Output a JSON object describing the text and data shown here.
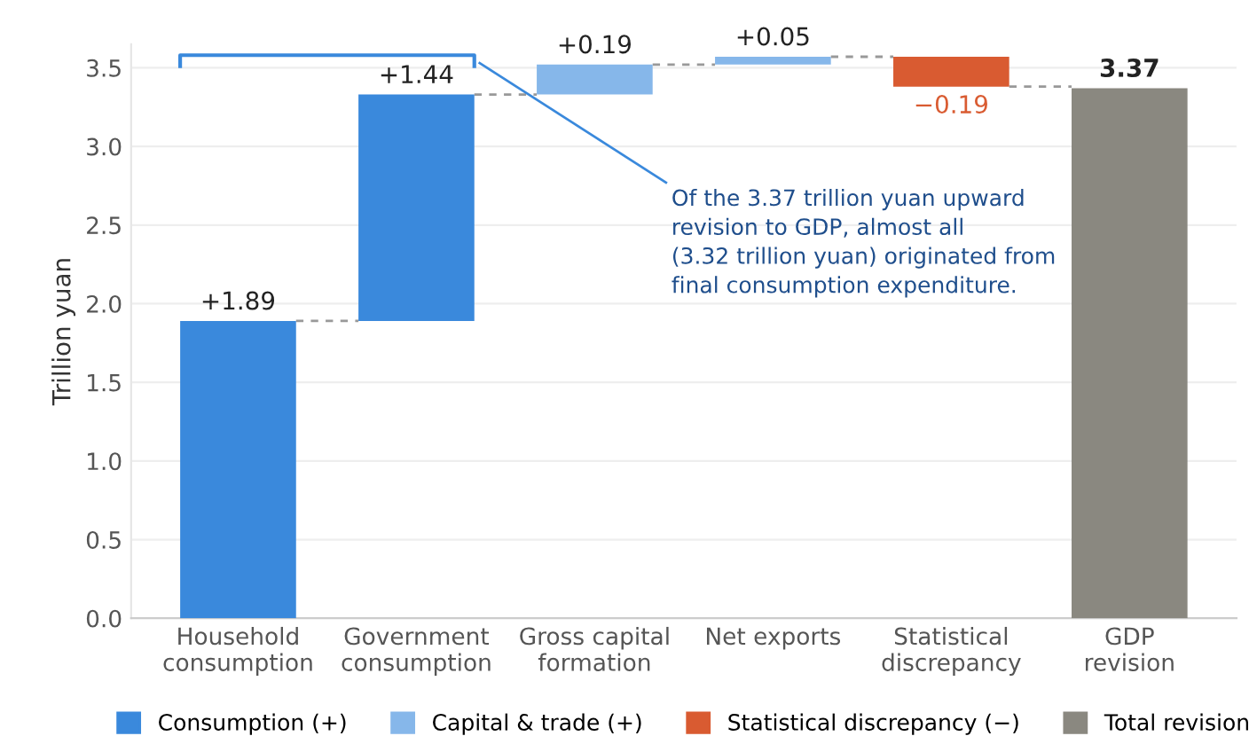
{
  "chart_data": {
    "type": "bar",
    "ylabel": "Trillion yuan",
    "categories": [
      "Household\nconsumption",
      "Government\nconsumption",
      "Gross capital\nformation",
      "Net exports",
      "Statistical\ndiscrepancy",
      "GDP\nrevision"
    ],
    "series": [
      {
        "name": "Consumption (+)",
        "color": "#3a89dc",
        "base": [
          0,
          1.89,
          null,
          null,
          null,
          null
        ],
        "values": [
          1.89,
          1.44,
          null,
          null,
          null,
          null
        ],
        "value_labels": [
          "+1.89",
          "+1.44",
          null,
          null,
          null,
          null
        ]
      },
      {
        "name": "Capital & trade (+)",
        "color": "#86b7ea",
        "base": [
          null,
          null,
          3.33,
          3.52,
          null,
          null
        ],
        "values": [
          null,
          null,
          0.19,
          0.05,
          null,
          null
        ],
        "value_labels": [
          null,
          null,
          "+0.19",
          "+0.05",
          null,
          null
        ]
      },
      {
        "name": "Statistical discrepancy (−)",
        "color": "#d95b31",
        "base": [
          null,
          null,
          null,
          null,
          3.57,
          null
        ],
        "values": [
          null,
          null,
          null,
          null,
          -0.19,
          null
        ],
        "value_labels": [
          null,
          null,
          null,
          null,
          "−0.19",
          null
        ]
      },
      {
        "name": "Total revision",
        "color": "#8a8880",
        "base": [
          null,
          null,
          null,
          null,
          null,
          0
        ],
        "values": [
          null,
          null,
          null,
          null,
          null,
          3.37
        ],
        "value_labels": [
          null,
          null,
          null,
          null,
          null,
          "3.37"
        ]
      }
    ],
    "ylim": [
      0,
      3.65
    ],
    "yticks": [
      {
        "value": 0,
        "label": "0.0"
      },
      0.5,
      {
        "value": 1,
        "label": "1.0"
      },
      1.5,
      {
        "value": 2,
        "label": "2.0"
      },
      2.5,
      {
        "value": 3,
        "label": "3.0"
      },
      3.5
    ],
    "annotations": [
      "Of the 3.37 trillion yuan upward\nrevision to GDP, almost all\n(3.32 trillion yuan) originated from\nfinal consumption expenditure."
    ],
    "grid": "y",
    "legend": "bottom"
  }
}
